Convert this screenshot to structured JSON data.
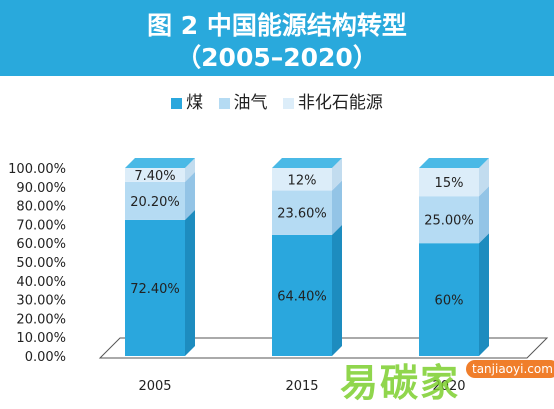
{
  "title": {
    "line1": "图 2 中国能源结构转型",
    "line2": "（2005–2020）"
  },
  "colors": {
    "title_band": "#29a9dc",
    "coal": "#2aa7dd",
    "oil": "#b5dbf3",
    "non_fossil": "#dcedf9"
  },
  "watermark": {
    "text": "易碳家",
    "domain": "tanjiaoyi.com"
  },
  "chart_data": {
    "type": "bar",
    "stacked": true,
    "categories": [
      "2005",
      "2015",
      "2020"
    ],
    "series": [
      {
        "name": "煤",
        "values": [
          72.4,
          64.4,
          60
        ],
        "labels": [
          "72.40%",
          "64.40%",
          "60%"
        ]
      },
      {
        "name": "油气",
        "values": [
          20.2,
          23.6,
          25
        ],
        "labels": [
          "20.20%",
          "23.60%",
          "25.00%"
        ]
      },
      {
        "name": "非化石能源",
        "values": [
          7.4,
          12,
          15
        ],
        "labels": [
          "7.40%",
          "12%",
          "15%"
        ]
      }
    ],
    "ylim": [
      0,
      100
    ],
    "yticks": [
      "0.00%",
      "10.00%",
      "20.00%",
      "30.00%",
      "40.00%",
      "50.00%",
      "60.00%",
      "70.00%",
      "80.00%",
      "90.00%",
      "100.00%"
    ],
    "legend_position": "top",
    "grid": false
  }
}
